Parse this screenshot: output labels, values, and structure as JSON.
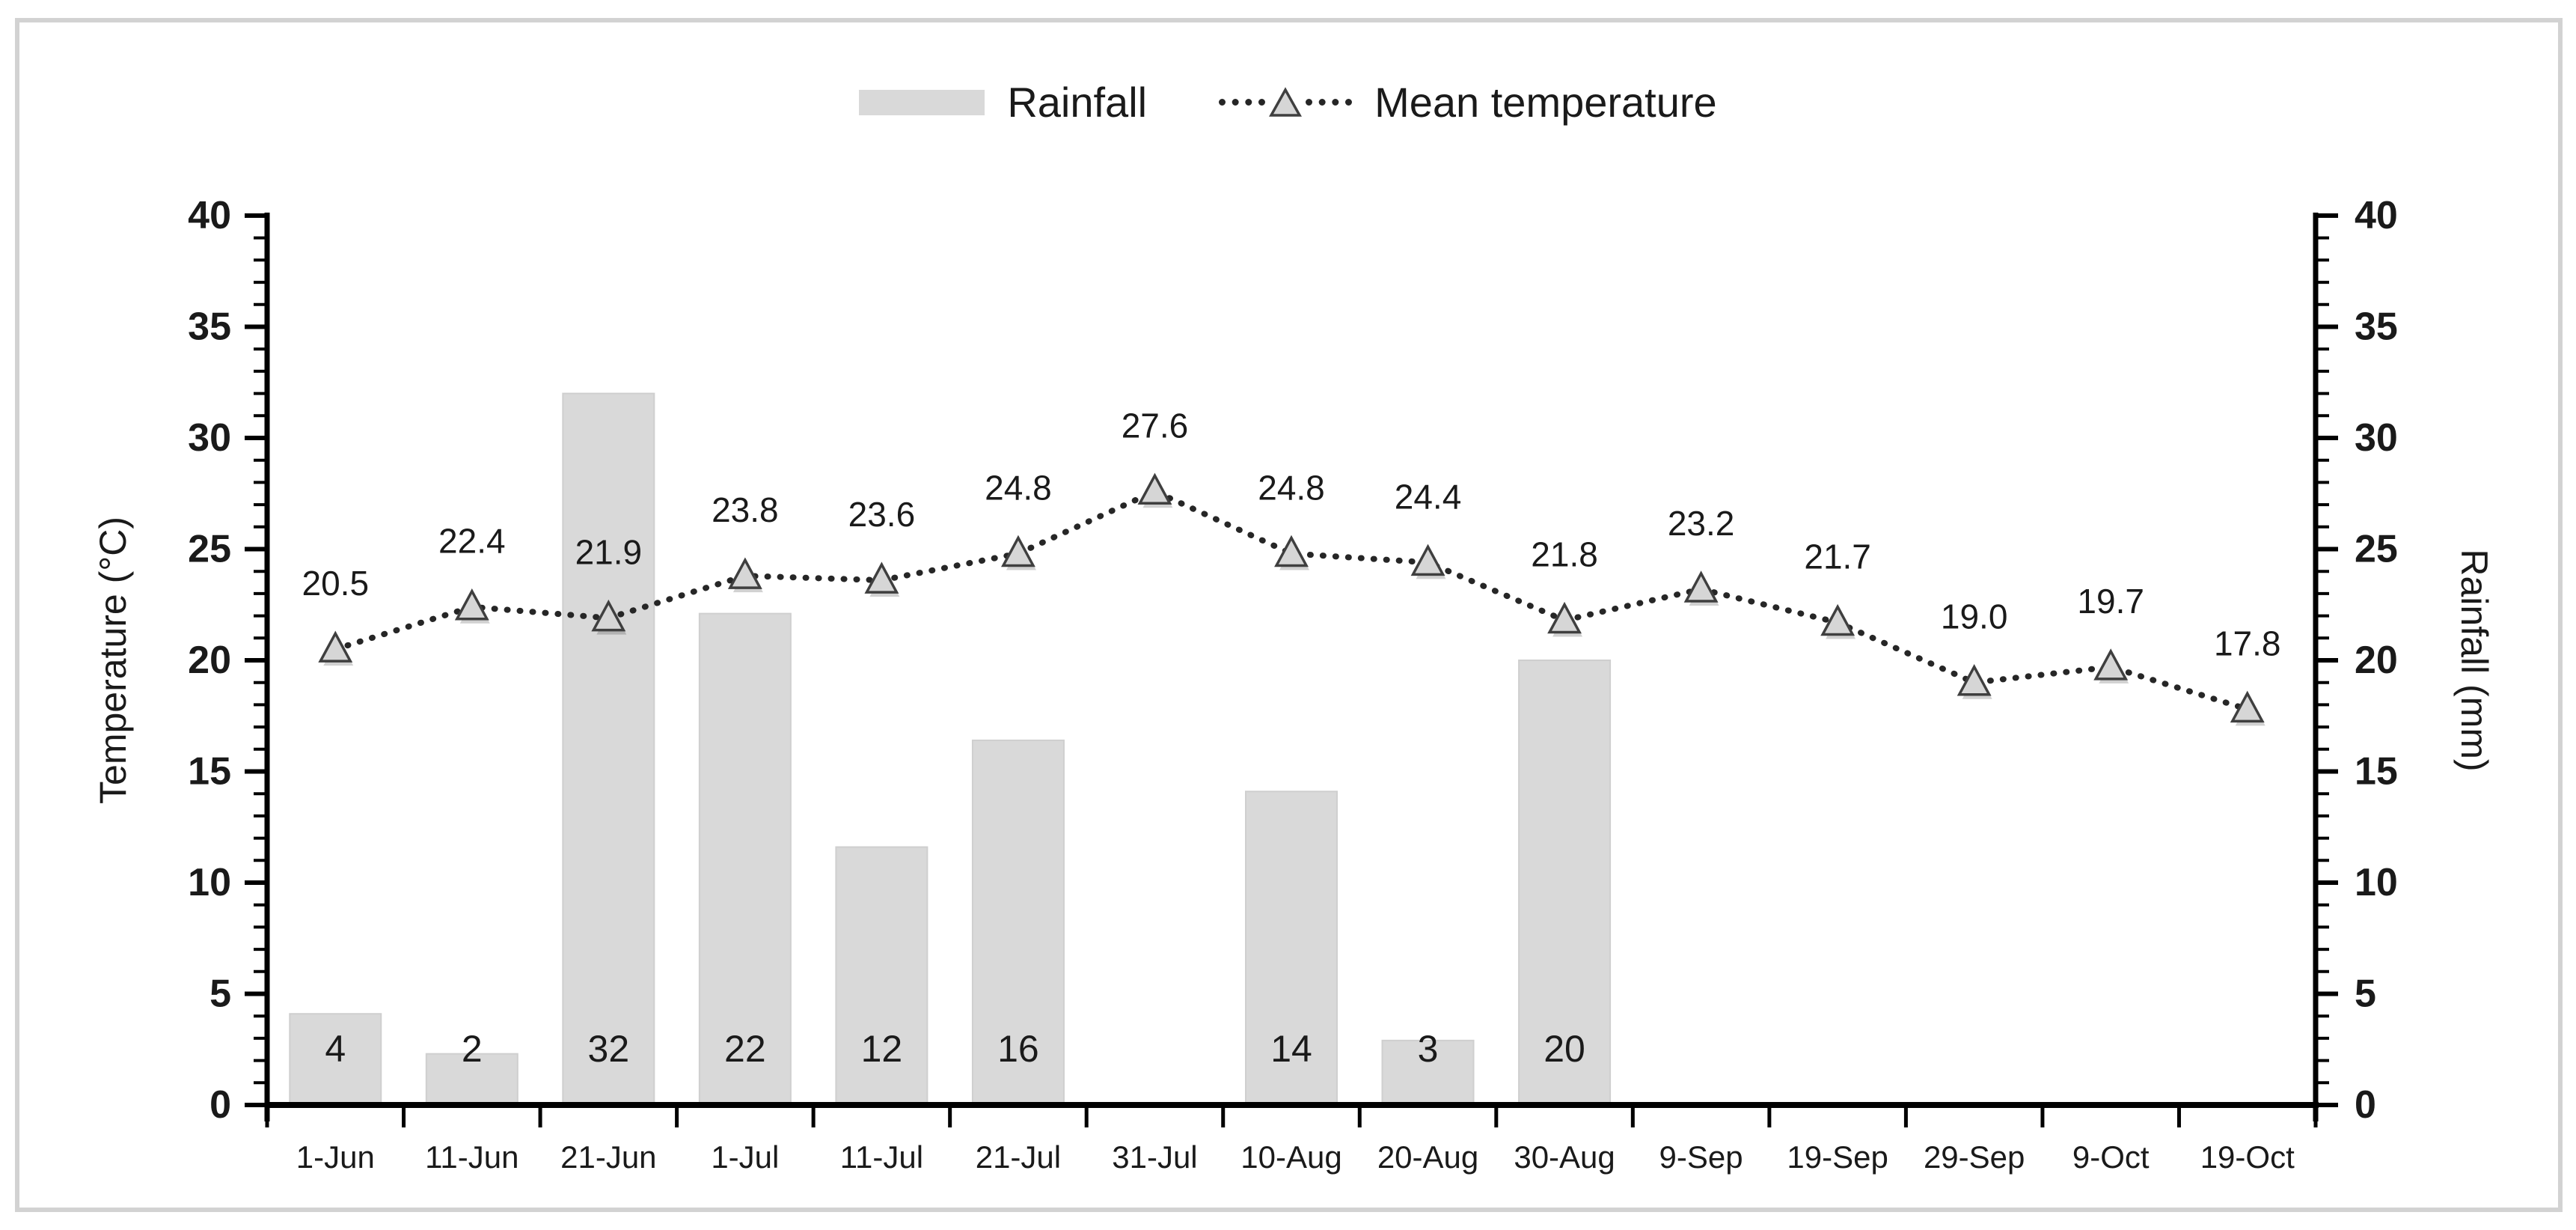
{
  "legend": {
    "rainfall": "Rainfall",
    "temperature": "Mean temperature"
  },
  "colors": {
    "bar_fill": "#d9d9d9",
    "bar_edge": "#cfcfcf",
    "line": "#262626",
    "marker_fill": "#d6d6d6",
    "marker_stroke": "#3f3f3f",
    "axis": "#000000",
    "text": "#1a1a1a",
    "frame_border": "#d2d2d2"
  },
  "chart_data": {
    "type": "combo",
    "categories": [
      "1-Jun",
      "11-Jun",
      "21-Jun",
      "1-Jul",
      "11-Jul",
      "21-Jul",
      "31-Jul",
      "10-Aug",
      "20-Aug",
      "30-Aug",
      "9-Sep",
      "19-Sep",
      "29-Sep",
      "9-Oct",
      "19-Oct"
    ],
    "series": [
      {
        "name": "Rainfall",
        "type": "bar",
        "axis": "right",
        "values": [
          4,
          2,
          32,
          22,
          12,
          16,
          null,
          14,
          3,
          20,
          null,
          null,
          null,
          null,
          null
        ],
        "bar_heights": [
          4.1,
          2.3,
          32.0,
          22.1,
          11.6,
          16.4,
          null,
          14.1,
          2.9,
          20.0,
          null,
          null,
          null,
          null,
          null
        ],
        "labels": [
          "4",
          "2",
          "32",
          "22",
          "12",
          "16",
          "",
          "14",
          "3",
          "20",
          "",
          "",
          "",
          "",
          ""
        ],
        "color": "#d9d9d9"
      },
      {
        "name": "Mean temperature",
        "type": "line",
        "axis": "left",
        "line_style": "dotted",
        "marker": "triangle",
        "values": [
          20.5,
          22.4,
          21.9,
          23.8,
          23.6,
          24.8,
          27.6,
          24.8,
          24.4,
          21.8,
          23.2,
          21.7,
          19.0,
          19.7,
          17.8
        ],
        "labels": [
          "20.5",
          "22.4",
          "21.9",
          "23.8",
          "23.6",
          "24.8",
          "27.6",
          "24.8",
          "24.4",
          "21.8",
          "23.2",
          "21.7",
          "19.0",
          "19.7",
          "17.8"
        ],
        "line_color": "#262626",
        "marker_fill": "#d6d6d6",
        "marker_stroke": "#3f3f3f"
      }
    ],
    "axes": {
      "left": {
        "title": "Temperature (°C)",
        "min": 0,
        "max": 40,
        "major_step": 5,
        "minor_step": 1
      },
      "right": {
        "title": "Rainfall (mm)",
        "min": 0,
        "max": 40,
        "major_step": 5,
        "minor_step": 1
      }
    },
    "legend_position": "top",
    "grid": false,
    "ylim": [
      0,
      40
    ]
  }
}
